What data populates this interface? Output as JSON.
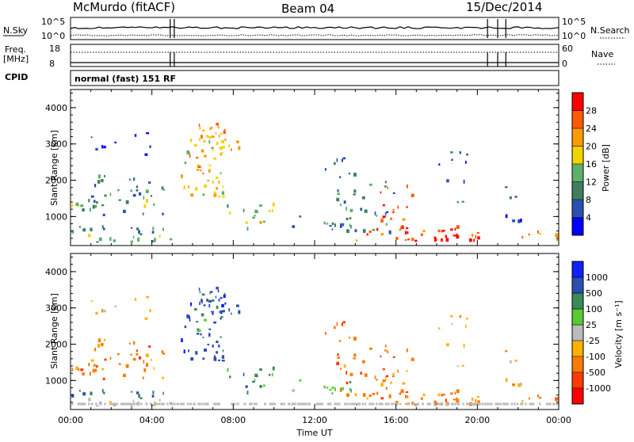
{
  "header": {
    "station": "McMurdo (fitACF)",
    "beam": "Beam 04",
    "date": "15/Dec/2014"
  },
  "sky_panel": {
    "left_label": "N.Sky",
    "right_label": "N.Search",
    "left_ticks": [
      "10^5",
      "10^0"
    ],
    "right_ticks": [
      "10^5",
      "10^0"
    ]
  },
  "freq_panel": {
    "left_label_1": "Freq.",
    "left_label_2": "[MHz]",
    "right_label": "Nave",
    "left_ticks": [
      "18",
      "8"
    ],
    "right_ticks": [
      "60",
      "0"
    ]
  },
  "cpid": {
    "label": "CPID",
    "mode": "normal (fast) 151 RF"
  },
  "colors": {
    "power_scale": [
      "#0000ff",
      "#2a4fb0",
      "#3f7f5f",
      "#5cb06a",
      "#f0d400",
      "#ff9a00",
      "#ff5a00",
      "#ff0000"
    ],
    "velocity_scale": [
      "#ff0000",
      "#ff3a00",
      "#ff7a00",
      "#ffb000",
      "#bbbbbb",
      "#55cc33",
      "#3a8a5a",
      "#2a4fb0",
      "#1020ff"
    ]
  },
  "chart_data": [
    {
      "type": "heatmap",
      "title": "",
      "xlabel": "Time UT",
      "ylabel": "Slant Range [km]",
      "x_ticks": [
        "00:00",
        "04:00",
        "08:00",
        "12:00",
        "16:00",
        "20:00",
        "00:00"
      ],
      "y_ticks": [
        "1000",
        "2000",
        "3000",
        "4000"
      ],
      "ylim": [
        200,
        4500
      ],
      "colorbar": {
        "label": "Power [dB]",
        "ticks": [
          "4",
          "8",
          "12",
          "16",
          "20",
          "24",
          "28"
        ],
        "range": [
          0,
          30
        ]
      }
    },
    {
      "type": "heatmap",
      "title": "",
      "xlabel": "Time UT",
      "ylabel": "Slant Range [km]",
      "x_ticks": [
        "00:00",
        "04:00",
        "08:00",
        "12:00",
        "16:00",
        "20:00",
        "00:00"
      ],
      "y_ticks": [
        "1000",
        "2000",
        "3000",
        "4000"
      ],
      "ylim": [
        200,
        4500
      ],
      "colorbar": {
        "label": "Velocity [m s⁻¹]",
        "ticks": [
          "1000",
          "500",
          "100",
          "25",
          "-25",
          "-100",
          "-500",
          "-1000"
        ],
        "range": [
          -1000,
          1000
        ]
      }
    }
  ]
}
